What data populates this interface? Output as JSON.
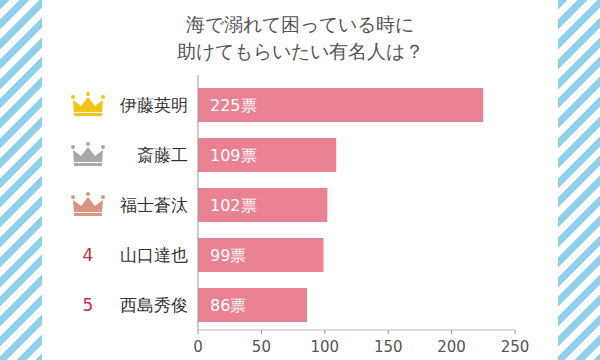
{
  "chart_data": {
    "type": "bar",
    "orientation": "horizontal",
    "title": "海で溺れて困っている時に\n助けてもらいたい有名人は？",
    "categories": [
      "伊藤英明",
      "斎藤工",
      "福士蒼汰",
      "山口達也",
      "西島秀俊"
    ],
    "ranks": [
      1,
      2,
      3,
      4,
      5
    ],
    "values": [
      225,
      109,
      102,
      99,
      86
    ],
    "value_labels": [
      "225票",
      "109票",
      "102票",
      "99票",
      "86票"
    ],
    "color": "#e98394",
    "data_labels": true,
    "grid": false,
    "xlim": [
      0,
      250
    ],
    "xticks": [
      0,
      50,
      100,
      150,
      200,
      250
    ]
  }
}
